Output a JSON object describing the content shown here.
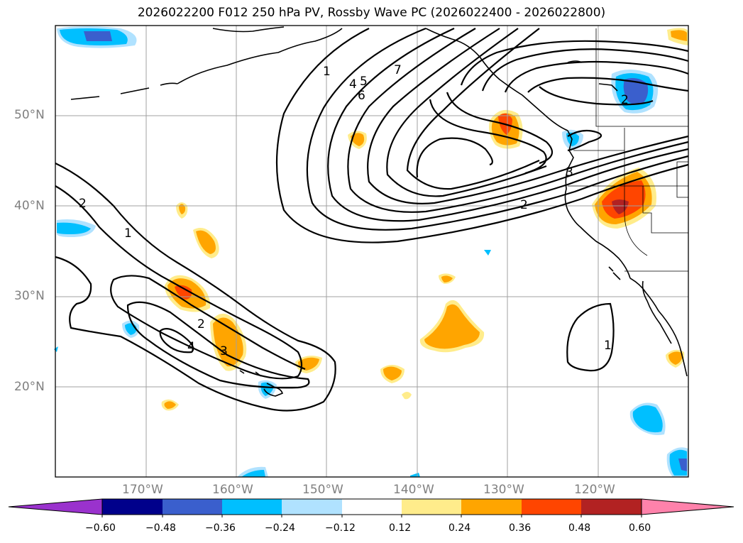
{
  "title": "2026022200 F012 250 hPa PV, Rossby Wave PC (2026022400 - 2026022800)",
  "lat_labels": [
    "50°N",
    "40°N",
    "30°N",
    "20°N"
  ],
  "lon_labels": [
    "170°W",
    "160°W",
    "150°W",
    "140°W",
    "130°W",
    "120°W"
  ],
  "colorbar": {
    "ticks": [
      "−0.60",
      "−0.48",
      "−0.36",
      "−0.24",
      "−0.12",
      "0.12",
      "0.24",
      "0.36",
      "0.48",
      "0.60"
    ],
    "colors": [
      "#9a32cd",
      "#00008b",
      "#3a5fcd",
      "#00bfff",
      "#b0e2ff",
      "#ffffff",
      "#ffec8b",
      "#ffa500",
      "#ff4500",
      "#b22222",
      "#ff82ab",
      "#ff82ab"
    ]
  },
  "contour_labels": [
    "1",
    "4",
    "5",
    "6",
    "7",
    "2",
    "3",
    "2",
    "1",
    "2",
    "4",
    "3",
    "2",
    "1"
  ],
  "colors": {
    "frame": "#000000",
    "grid": "#a0a0a0",
    "axis_label": "#808080"
  }
}
